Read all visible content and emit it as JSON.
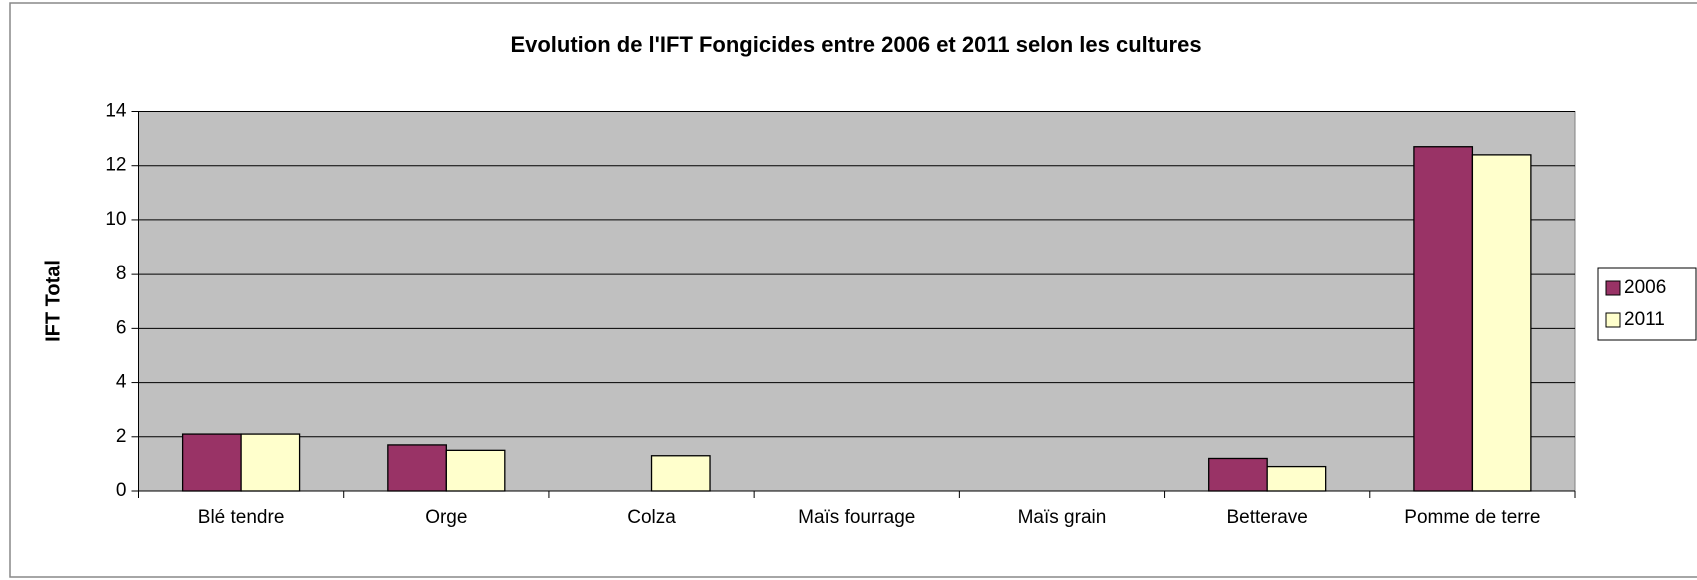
{
  "chart_data": {
    "type": "bar",
    "title": "Evolution de l'IFT Fongicides entre 2006 et 2011 selon les cultures",
    "y_label": "IFT Total",
    "categories": [
      "Blé tendre",
      "Orge",
      "Colza",
      "Maïs fourrage",
      "Maïs grain",
      "Betterave",
      "Pomme de terre"
    ],
    "series": [
      {
        "name": "2006",
        "color": "#993366",
        "values": [
          2.1,
          1.7,
          0,
          0,
          0,
          1.2,
          12.7
        ]
      },
      {
        "name": "2011",
        "color": "#ffffcc",
        "values": [
          2.1,
          1.5,
          1.3,
          0,
          0,
          0.9,
          12.4
        ]
      }
    ],
    "ylim": [
      0,
      14
    ],
    "yticks": [
      0,
      2,
      4,
      6,
      8,
      10,
      12,
      14
    ],
    "grid": true,
    "plot_background": "#c0c0c0",
    "legend": "right"
  }
}
